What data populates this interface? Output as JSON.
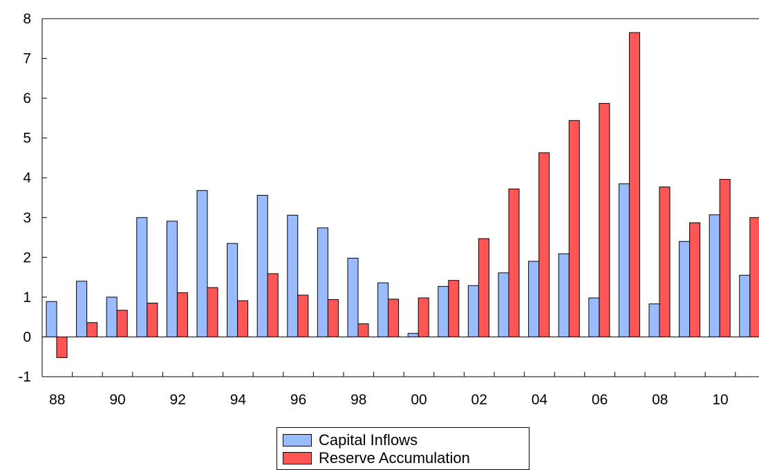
{
  "chart_data": {
    "type": "bar",
    "title": "",
    "xlabel": "",
    "ylabel": "",
    "ylim": [
      -1,
      8
    ],
    "yticks": [
      "-1",
      "0",
      "1",
      "2",
      "3",
      "4",
      "5",
      "6",
      "7",
      "8"
    ],
    "categories": [
      "1988",
      "1989",
      "1990",
      "1991",
      "1992",
      "1993",
      "1994",
      "1995",
      "1996",
      "1997",
      "1998",
      "1999",
      "2000",
      "2001",
      "2002",
      "2003",
      "2004",
      "2005",
      "2006",
      "2007",
      "2008",
      "2009",
      "2010",
      "2011"
    ],
    "x_tick_labels": [
      "88",
      "90",
      "92",
      "94",
      "96",
      "98",
      "00",
      "02",
      "04",
      "06",
      "08",
      "10"
    ],
    "series": [
      {
        "name": "Capital Inflows",
        "color": "#99bbff",
        "values": [
          0.89,
          1.4,
          1.0,
          3.0,
          2.91,
          3.68,
          2.35,
          3.56,
          3.06,
          2.74,
          1.98,
          1.36,
          0.09,
          1.27,
          1.29,
          1.61,
          1.9,
          2.09,
          0.98,
          3.85,
          0.83,
          2.4,
          3.07,
          1.55
        ]
      },
      {
        "name": "Reserve Accumulation",
        "color": "#ff5555",
        "values": [
          -0.52,
          0.36,
          0.67,
          0.85,
          1.11,
          1.24,
          0.91,
          1.59,
          1.05,
          0.94,
          0.33,
          0.95,
          0.98,
          1.42,
          2.47,
          3.72,
          4.63,
          5.44,
          5.87,
          7.65,
          3.77,
          2.87,
          3.96,
          3.0
        ]
      }
    ],
    "grid": false,
    "legend_position": "bottom-center"
  }
}
